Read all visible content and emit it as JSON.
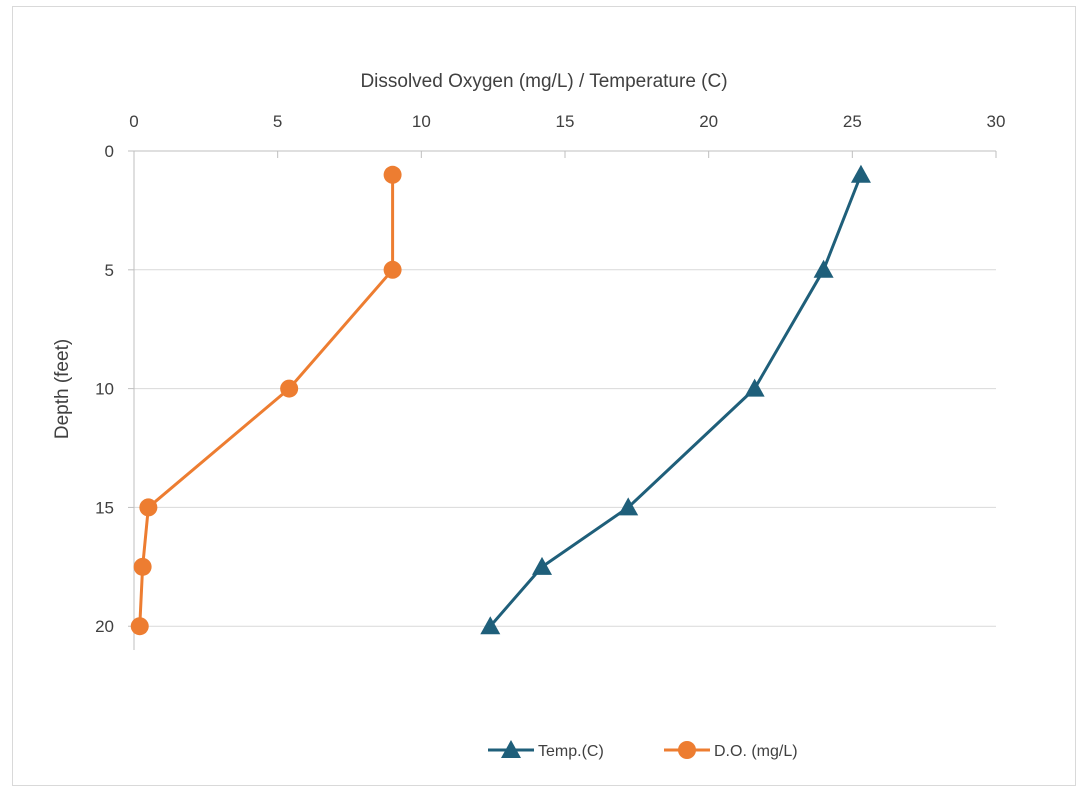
{
  "chart_data": {
    "type": "scatter",
    "title": "",
    "xlabel": "Dissolved Oxygen (mg/L) / Temperature (C)",
    "ylabel": "Depth (feet)",
    "xlim": [
      0,
      30
    ],
    "ylim": [
      0,
      21
    ],
    "y_inverted": true,
    "x_axis_position": "top",
    "x_ticks": [
      0,
      5,
      10,
      15,
      20,
      25,
      30
    ],
    "y_ticks": [
      0,
      5,
      10,
      15,
      20
    ],
    "grid": "horizontal",
    "legend_position": "bottom",
    "series": [
      {
        "name": "Temp.(C)",
        "color": "#1f5f7a",
        "marker": "triangle",
        "points": [
          {
            "x": 25.3,
            "y": 1
          },
          {
            "x": 24.0,
            "y": 5
          },
          {
            "x": 21.6,
            "y": 10
          },
          {
            "x": 17.2,
            "y": 15
          },
          {
            "x": 14.2,
            "y": 17.5
          },
          {
            "x": 12.4,
            "y": 20
          }
        ]
      },
      {
        "name": "D.O. (mg/L)",
        "color": "#ed7d31",
        "marker": "circle",
        "points": [
          {
            "x": 9.0,
            "y": 1
          },
          {
            "x": 9.0,
            "y": 5
          },
          {
            "x": 5.4,
            "y": 10
          },
          {
            "x": 0.5,
            "y": 15
          },
          {
            "x": 0.3,
            "y": 17.5
          },
          {
            "x": 0.2,
            "y": 20
          }
        ]
      }
    ]
  }
}
